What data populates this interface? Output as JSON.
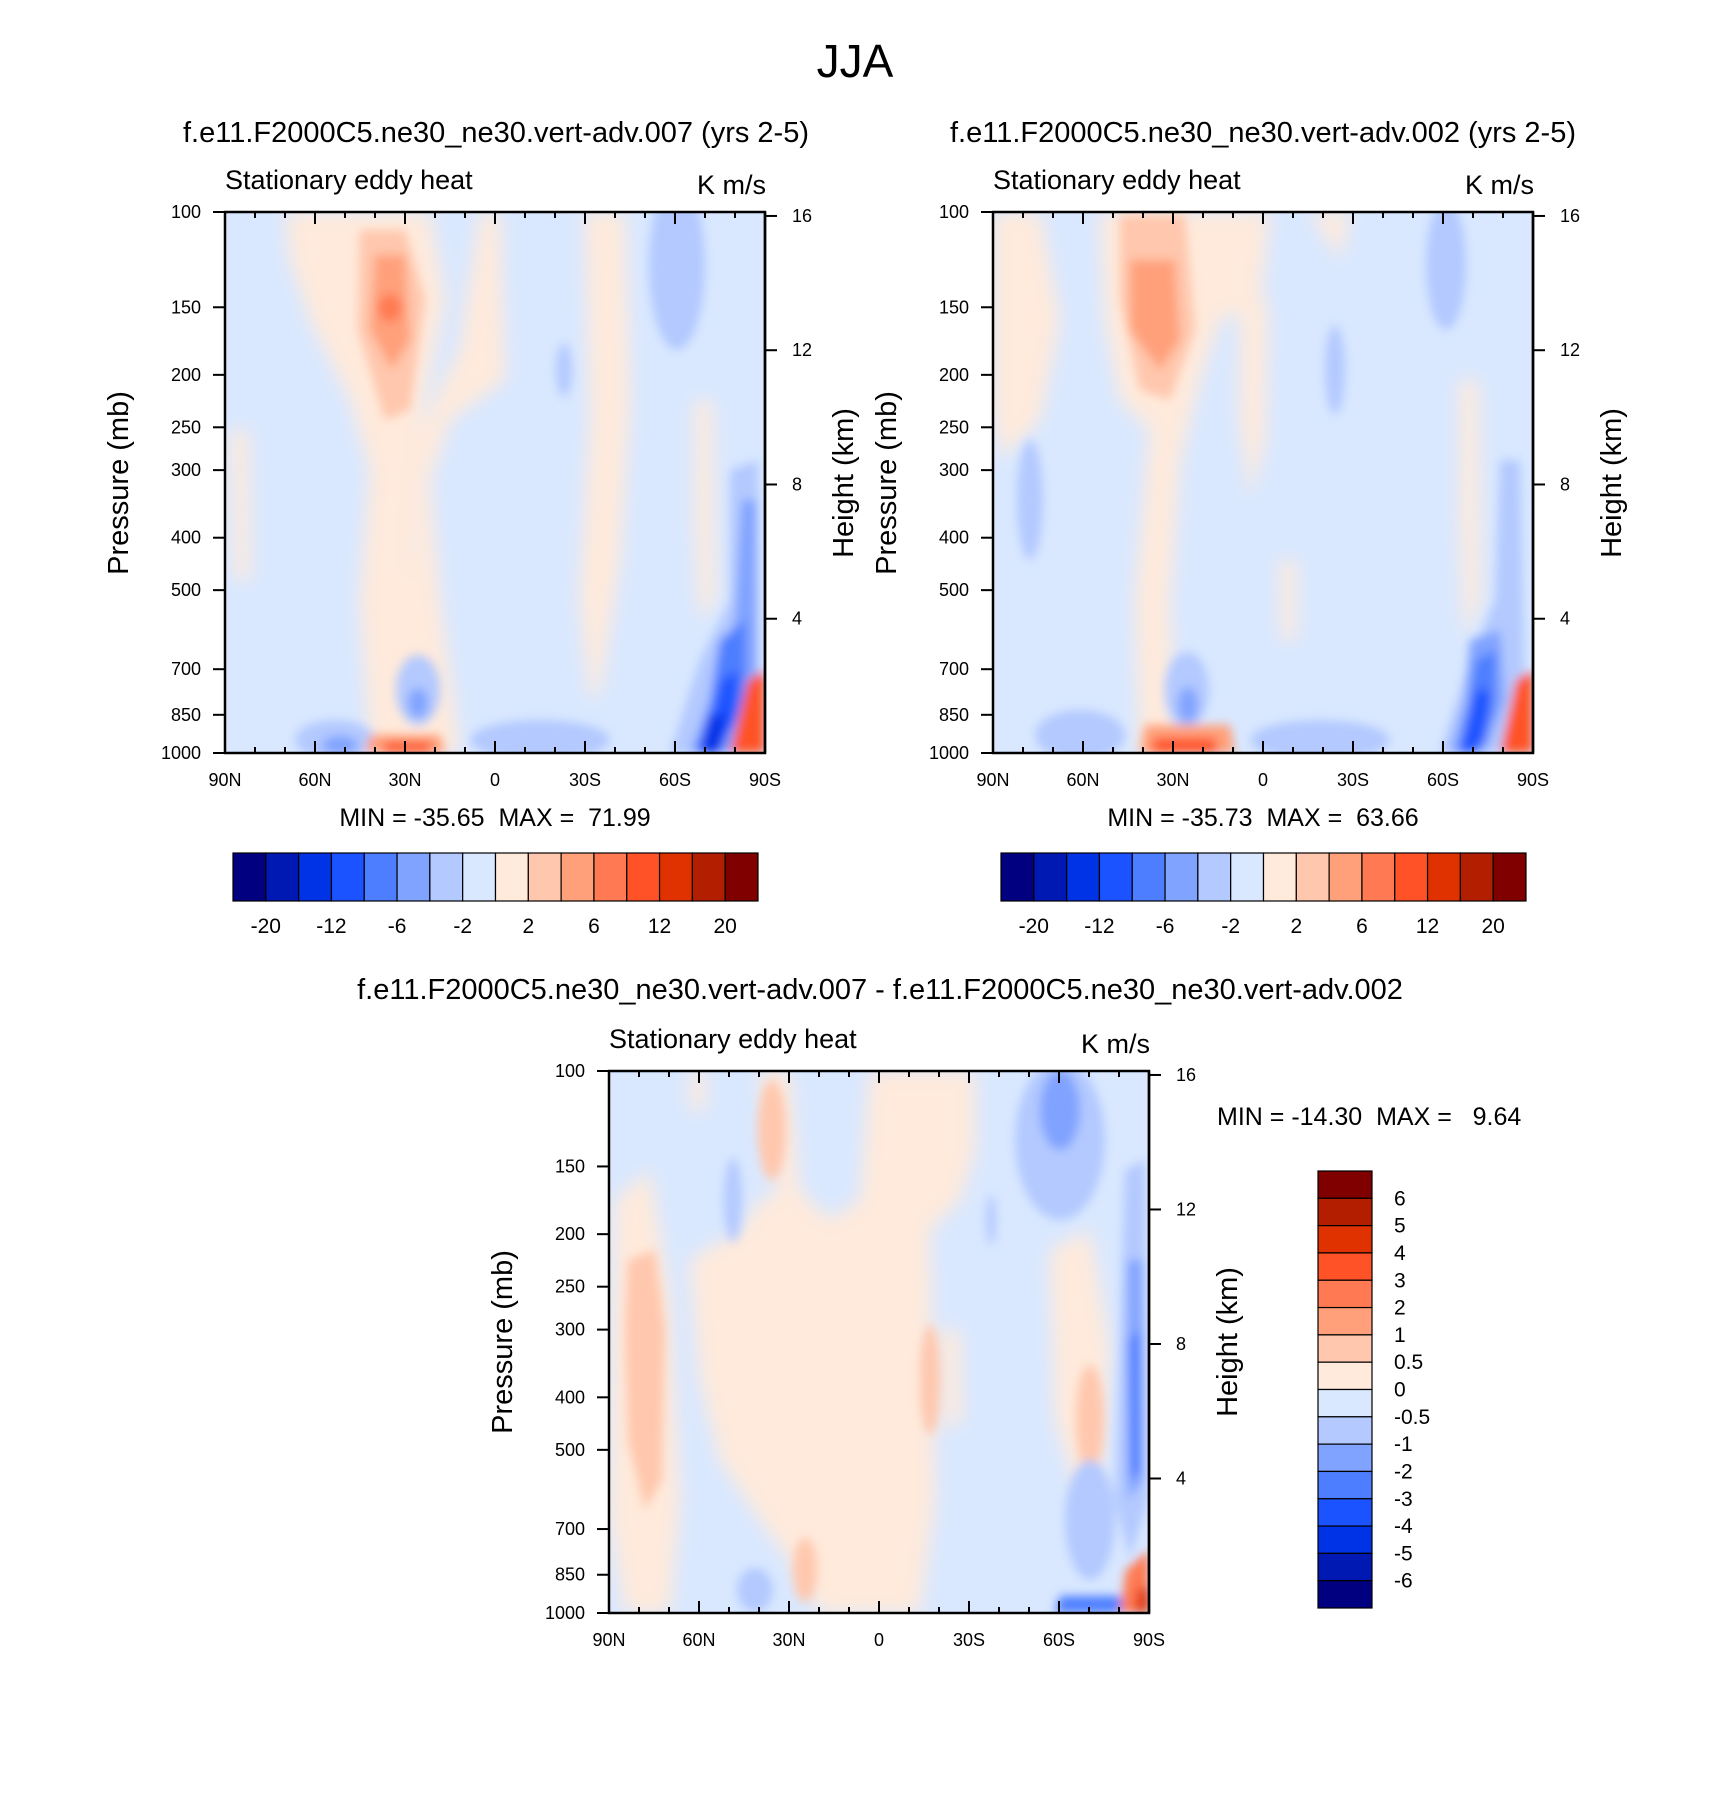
{
  "page": {
    "title": "JJA"
  },
  "chart_data": [
    {
      "type": "contour",
      "title": "f.e11.F2000C5.ne30_ne30.vert-adv.007 (yrs 2-5)",
      "left_label": "Stationary eddy heat",
      "units": "K m/s",
      "ylabel": "Pressure (mb)",
      "y2label": "Height (km)",
      "x_ticks": [
        "90N",
        "60N",
        "30N",
        "0",
        "30S",
        "60S",
        "90S"
      ],
      "x_values": [
        90,
        60,
        30,
        0,
        -30,
        -60,
        -90
      ],
      "y_ticks": [
        "100",
        "150",
        "200",
        "250",
        "300",
        "400",
        "500",
        "700",
        "850",
        "1000"
      ],
      "y_values": [
        100,
        150,
        200,
        250,
        300,
        400,
        500,
        700,
        850,
        1000
      ],
      "y2_ticks": [
        "16",
        "12",
        "8",
        "4"
      ],
      "y2_values": [
        16,
        12,
        8,
        4
      ],
      "stats": "MIN = -35.65  MAX =  71.99",
      "min": -35.65,
      "max": 71.99,
      "colorbar": {
        "orientation": "horizontal",
        "labels": [
          "-20",
          "-12",
          "-6",
          "-2",
          "2",
          "6",
          "12",
          "20"
        ],
        "colors": [
          "#000080",
          "#0019b3",
          "#0033e6",
          "#1a53ff",
          "#4d7eff",
          "#80a3ff",
          "#b3c9ff",
          "#d9e8ff",
          "#ffeadb",
          "#ffc7ad",
          "#ffa07a",
          "#ff7a52",
          "#ff5226",
          "#e03200",
          "#b31e00",
          "#800000"
        ]
      }
    },
    {
      "type": "contour",
      "title": "f.e11.F2000C5.ne30_ne30.vert-adv.002 (yrs 2-5)",
      "left_label": "Stationary eddy heat",
      "units": "K m/s",
      "ylabel": "Pressure (mb)",
      "y2label": "Height (km)",
      "x_ticks": [
        "90N",
        "60N",
        "30N",
        "0",
        "30S",
        "60S",
        "90S"
      ],
      "x_values": [
        90,
        60,
        30,
        0,
        -30,
        -60,
        -90
      ],
      "y_ticks": [
        "100",
        "150",
        "200",
        "250",
        "300",
        "400",
        "500",
        "700",
        "850",
        "1000"
      ],
      "y_values": [
        100,
        150,
        200,
        250,
        300,
        400,
        500,
        700,
        850,
        1000
      ],
      "y2_ticks": [
        "16",
        "12",
        "8",
        "4"
      ],
      "y2_values": [
        16,
        12,
        8,
        4
      ],
      "stats": "MIN = -35.73  MAX =  63.66",
      "min": -35.73,
      "max": 63.66,
      "colorbar": {
        "orientation": "horizontal",
        "labels": [
          "-20",
          "-12",
          "-6",
          "-2",
          "2",
          "6",
          "12",
          "20"
        ],
        "colors": [
          "#000080",
          "#0019b3",
          "#0033e6",
          "#1a53ff",
          "#4d7eff",
          "#80a3ff",
          "#b3c9ff",
          "#d9e8ff",
          "#ffeadb",
          "#ffc7ad",
          "#ffa07a",
          "#ff7a52",
          "#ff5226",
          "#e03200",
          "#b31e00",
          "#800000"
        ]
      }
    },
    {
      "type": "contour",
      "title": "f.e11.F2000C5.ne30_ne30.vert-adv.007 - f.e11.F2000C5.ne30_ne30.vert-adv.002",
      "left_label": "Stationary eddy heat",
      "units": "K m/s",
      "ylabel": "Pressure (mb)",
      "y2label": "Height (km)",
      "x_ticks": [
        "90N",
        "60N",
        "30N",
        "0",
        "30S",
        "60S",
        "90S"
      ],
      "x_values": [
        90,
        60,
        30,
        0,
        -30,
        -60,
        -90
      ],
      "y_ticks": [
        "100",
        "150",
        "200",
        "250",
        "300",
        "400",
        "500",
        "700",
        "850",
        "1000"
      ],
      "y_values": [
        100,
        150,
        200,
        250,
        300,
        400,
        500,
        700,
        850,
        1000
      ],
      "y2_ticks": [
        "16",
        "12",
        "8",
        "4"
      ],
      "y2_values": [
        16,
        12,
        8,
        4
      ],
      "stats": "MIN = -14.30  MAX =   9.64",
      "min": -14.3,
      "max": 9.64,
      "colorbar": {
        "orientation": "vertical",
        "labels": [
          "6",
          "5",
          "4",
          "3",
          "2",
          "1",
          "0.5",
          "0",
          "-0.5",
          "-1",
          "-2",
          "-3",
          "-4",
          "-5",
          "-6"
        ],
        "colors": [
          "#800000",
          "#b31e00",
          "#e03200",
          "#ff5226",
          "#ff7a52",
          "#ffa07a",
          "#ffc7ad",
          "#ffeadb",
          "#d9e8ff",
          "#b3c9ff",
          "#80a3ff",
          "#4d7eff",
          "#1a53ff",
          "#0033e6",
          "#0019b3",
          "#000080"
        ]
      }
    }
  ]
}
